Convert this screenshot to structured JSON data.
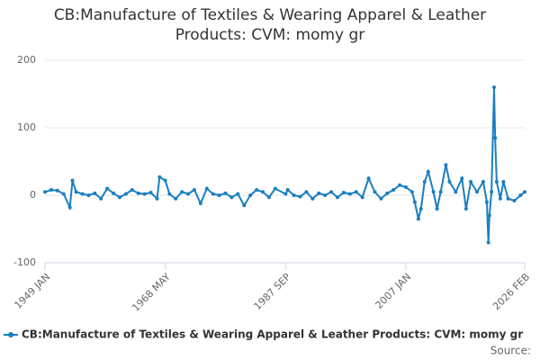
{
  "chart_data": {
    "type": "line",
    "title": "CB:Manufacture of Textiles & Wearing Apparel & Leather Products: CVM: momy gr",
    "source": "Source:",
    "x": [
      "1949-01",
      "1950-01",
      "1951-01",
      "1952-01",
      "1953-01",
      "1953-06",
      "1954-01",
      "1955-01",
      "1956-01",
      "1957-01",
      "1958-01",
      "1959-01",
      "1960-01",
      "1961-01",
      "1962-01",
      "1963-01",
      "1964-01",
      "1965-01",
      "1966-01",
      "1967-01",
      "1967-06",
      "1968-05",
      "1969-01",
      "1970-01",
      "1971-01",
      "1972-01",
      "1973-01",
      "1974-01",
      "1975-01",
      "1976-01",
      "1977-01",
      "1978-01",
      "1979-01",
      "1980-01",
      "1981-01",
      "1982-01",
      "1983-01",
      "1984-01",
      "1985-01",
      "1986-01",
      "1987-09",
      "1988-01",
      "1989-01",
      "1990-01",
      "1991-01",
      "1992-01",
      "1993-01",
      "1994-01",
      "1995-01",
      "1996-01",
      "1997-01",
      "1998-01",
      "1999-01",
      "2000-01",
      "2001-01",
      "2002-01",
      "2003-01",
      "2004-01",
      "2005-01",
      "2006-01",
      "2007-01",
      "2008-01",
      "2008-06",
      "2009-01",
      "2009-06",
      "2010-01",
      "2010-08",
      "2011-06",
      "2012-01",
      "2012-08",
      "2013-06",
      "2014-01",
      "2015-01",
      "2016-01",
      "2016-09",
      "2017-06",
      "2018-06",
      "2019-06",
      "2020-01",
      "2020-04",
      "2020-06",
      "2020-10",
      "2021-03",
      "2021-05",
      "2021-08",
      "2022-03",
      "2022-09",
      "2023-06",
      "2024-06",
      "2025-06",
      "2026-02"
    ],
    "series": [
      {
        "name": "CB:Manufacture of Textiles & Wearing Apparel & Leather Products: CVM: momy gr",
        "color": "#1a7fc1",
        "values": [
          5,
          8,
          7,
          2,
          -18,
          22,
          5,
          2,
          0,
          3,
          -5,
          10,
          3,
          -3,
          2,
          8,
          3,
          2,
          4,
          -5,
          27,
          22,
          2,
          -5,
          5,
          2,
          8,
          -12,
          10,
          2,
          0,
          3,
          -3,
          2,
          -15,
          0,
          8,
          5,
          -3,
          10,
          2,
          8,
          0,
          -2,
          5,
          -5,
          3,
          0,
          5,
          -3,
          4,
          2,
          5,
          -3,
          25,
          5,
          -5,
          3,
          8,
          15,
          12,
          5,
          -10,
          -35,
          -20,
          20,
          35,
          5,
          -20,
          5,
          45,
          20,
          5,
          25,
          -20,
          20,
          5,
          20,
          -10,
          -70,
          -30,
          5,
          160,
          85,
          20,
          -5,
          20,
          -5,
          -8,
          0,
          5
        ]
      }
    ],
    "ylim": [
      -100,
      200
    ],
    "yticks": [
      -100,
      0,
      100,
      200
    ],
    "grid": true,
    "xlim": [
      "1949-01",
      "2026-02"
    ],
    "xticks": [
      {
        "value": "1949-01",
        "label": "1949 JAN"
      },
      {
        "value": "1968-05",
        "label": "1968 MAY"
      },
      {
        "value": "1987-09",
        "label": "1987 SEP"
      },
      {
        "value": "2007-01",
        "label": "2007 JAN"
      },
      {
        "value": "2026-02",
        "label": "2026 FEB"
      }
    ],
    "legend": "bottom"
  }
}
